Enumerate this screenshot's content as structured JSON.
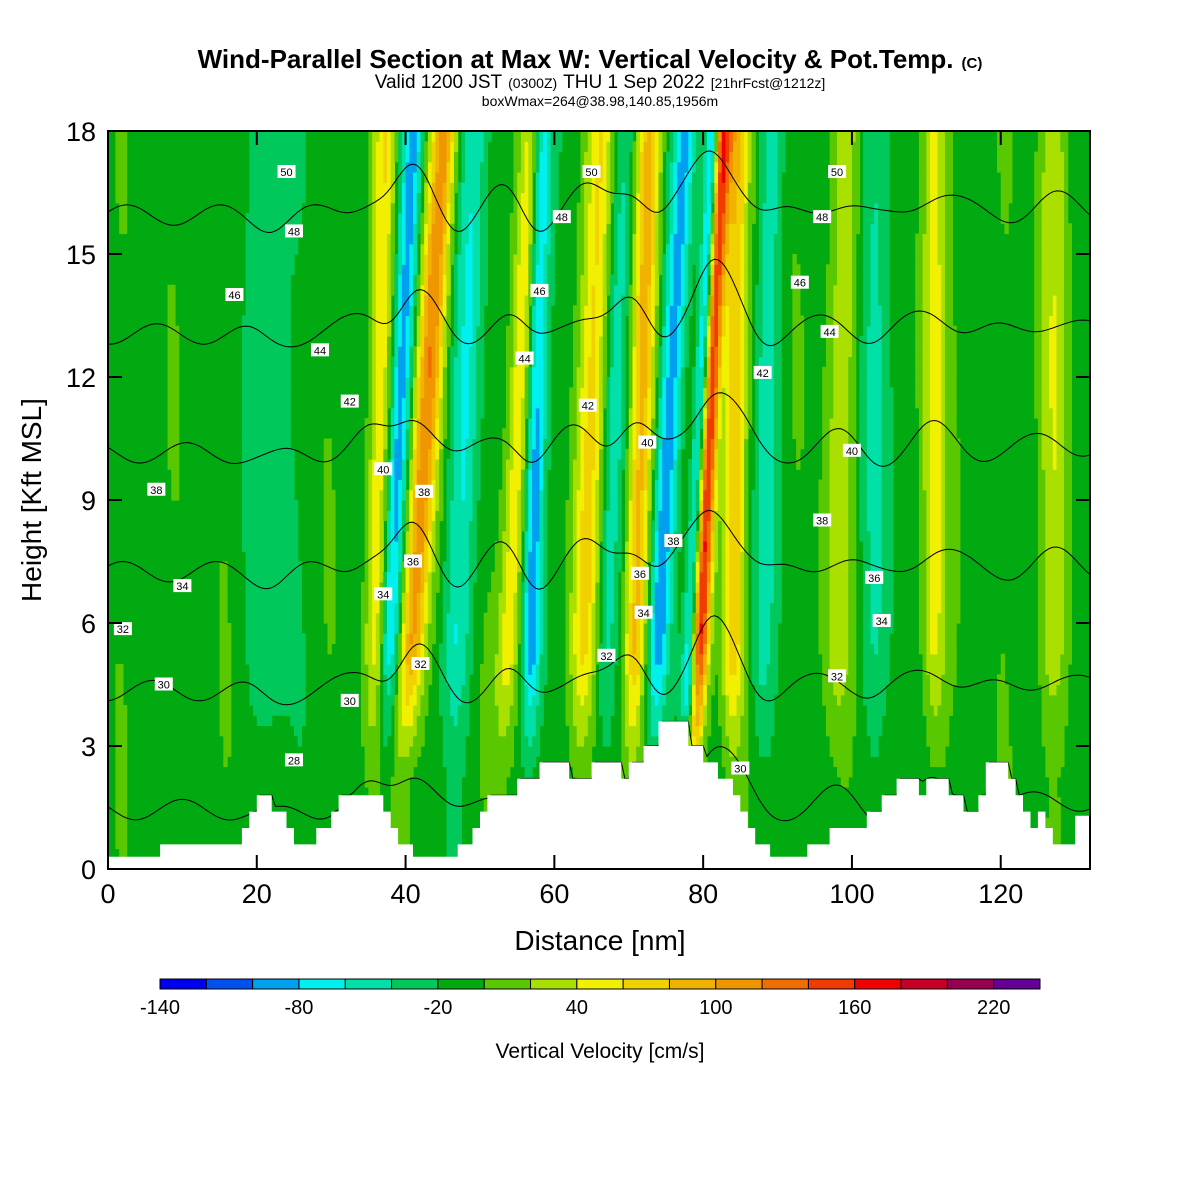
{
  "chart_data": {
    "type": "heatmap",
    "title": "Wind-Parallel Section at Max W: Vertical Velocity & Pot.Temp.",
    "title_mark": "(C)",
    "subtitle_main": "Valid 1200 JST",
    "subtitle_utc": "(0300Z)",
    "subtitle_date": "THU 1 Sep 2022",
    "subtitle_fcst": "[21hrFcst@1212z]",
    "box_info": "boxWmax=264@38.98,140.85,1956m",
    "xlabel": "Distance [nm]",
    "ylabel": "Height [Kft MSL]",
    "xlim": [
      0,
      132
    ],
    "ylim": [
      0,
      18
    ],
    "x_ticks": [
      "0",
      "20",
      "40",
      "60",
      "80",
      "100",
      "120"
    ],
    "y_ticks": [
      "0",
      "3",
      "6",
      "9",
      "12",
      "15",
      "18"
    ],
    "colorbar": {
      "label": "Vertical Velocity [cm/s]",
      "tick_labels": [
        "-140",
        "-80",
        "-20",
        "40",
        "100",
        "160",
        "220"
      ],
      "levels": [
        -140,
        -120,
        -100,
        -80,
        -60,
        -40,
        -20,
        0,
        20,
        40,
        60,
        80,
        100,
        120,
        140,
        160,
        180,
        200,
        220,
        240
      ],
      "colors": [
        "#0000f0",
        "#0050f0",
        "#00a0f0",
        "#00f0f0",
        "#00e0a8",
        "#00c85a",
        "#00aa10",
        "#5ac800",
        "#aae000",
        "#f0f000",
        "#f0d200",
        "#f0b400",
        "#f09600",
        "#f06e00",
        "#f03c00",
        "#f00000",
        "#c80028",
        "#960050",
        "#640096"
      ]
    },
    "terrain_nm_kft": [
      [
        0,
        0.3
      ],
      [
        7,
        0.3
      ],
      [
        7,
        0.6
      ],
      [
        18,
        0.6
      ],
      [
        18,
        1.0
      ],
      [
        19,
        1.0
      ],
      [
        19,
        1.4
      ],
      [
        20,
        1.4
      ],
      [
        20,
        1.8
      ],
      [
        22,
        1.8
      ],
      [
        22,
        1.4
      ],
      [
        24,
        1.4
      ],
      [
        24,
        1.0
      ],
      [
        25,
        1.0
      ],
      [
        25,
        0.6
      ],
      [
        28,
        0.6
      ],
      [
        28,
        1.0
      ],
      [
        30,
        1.0
      ],
      [
        30,
        1.4
      ],
      [
        31,
        1.4
      ],
      [
        31,
        1.8
      ],
      [
        37,
        1.8
      ],
      [
        37,
        1.4
      ],
      [
        38,
        1.4
      ],
      [
        38,
        1.0
      ],
      [
        39,
        1.0
      ],
      [
        39,
        0.6
      ],
      [
        41,
        0.6
      ],
      [
        41,
        0.3
      ],
      [
        47,
        0.3
      ],
      [
        47,
        0.6
      ],
      [
        49,
        0.6
      ],
      [
        49,
        1.0
      ],
      [
        50,
        1.0
      ],
      [
        50,
        1.4
      ],
      [
        51,
        1.4
      ],
      [
        51,
        1.8
      ],
      [
        55,
        1.8
      ],
      [
        55,
        2.2
      ],
      [
        58,
        2.2
      ],
      [
        58,
        2.6
      ],
      [
        62,
        2.6
      ],
      [
        62,
        2.2
      ],
      [
        65,
        2.2
      ],
      [
        65,
        2.6
      ],
      [
        69,
        2.6
      ],
      [
        69,
        2.2
      ],
      [
        70,
        2.2
      ],
      [
        70,
        2.6
      ],
      [
        72,
        2.6
      ],
      [
        72,
        3.0
      ],
      [
        74,
        3.0
      ],
      [
        74,
        3.6
      ],
      [
        78,
        3.6
      ],
      [
        78,
        3.0
      ],
      [
        80,
        3.0
      ],
      [
        80,
        2.6
      ],
      [
        82,
        2.6
      ],
      [
        82,
        2.2
      ],
      [
        84,
        2.2
      ],
      [
        84,
        1.8
      ],
      [
        85,
        1.8
      ],
      [
        85,
        1.4
      ],
      [
        86,
        1.4
      ],
      [
        86,
        1.0
      ],
      [
        87,
        1.0
      ],
      [
        87,
        0.6
      ],
      [
        89,
        0.6
      ],
      [
        89,
        0.3
      ],
      [
        94,
        0.3
      ],
      [
        94,
        0.6
      ],
      [
        97,
        0.6
      ],
      [
        97,
        1.0
      ],
      [
        102,
        1.0
      ],
      [
        102,
        1.4
      ],
      [
        104,
        1.4
      ],
      [
        104,
        1.8
      ],
      [
        106,
        1.8
      ],
      [
        106,
        2.2
      ],
      [
        109,
        2.2
      ],
      [
        109,
        1.8
      ],
      [
        110,
        1.8
      ],
      [
        110,
        2.2
      ],
      [
        113,
        2.2
      ],
      [
        113,
        1.8
      ],
      [
        115,
        1.8
      ],
      [
        115,
        1.4
      ],
      [
        117,
        1.4
      ],
      [
        117,
        1.8
      ],
      [
        118,
        1.8
      ],
      [
        118,
        2.6
      ],
      [
        121,
        2.6
      ],
      [
        121,
        2.2
      ],
      [
        122,
        2.2
      ],
      [
        122,
        1.8
      ],
      [
        123,
        1.8
      ],
      [
        123,
        1.4
      ],
      [
        124,
        1.4
      ],
      [
        124,
        1.0
      ],
      [
        125,
        1.0
      ],
      [
        125,
        1.4
      ],
      [
        126,
        1.4
      ],
      [
        126,
        1.0
      ],
      [
        127,
        1.0
      ],
      [
        127,
        0.6
      ],
      [
        130,
        0.6
      ],
      [
        130,
        1.3
      ],
      [
        132,
        1.3
      ]
    ],
    "updrafts": [
      {
        "x": 41,
        "w": 1.8,
        "peak_cm_s": 120,
        "slope": 0.35
      },
      {
        "x": 36,
        "w": 1.4,
        "peak_cm_s": 60,
        "slope": 0.1
      },
      {
        "x": 54,
        "w": 1.6,
        "peak_cm_s": 70,
        "slope": 0.25
      },
      {
        "x": 64,
        "w": 2.0,
        "peak_cm_s": 70,
        "slope": 0.2
      },
      {
        "x": 71,
        "w": 1.6,
        "peak_cm_s": 90,
        "slope": 0.15
      },
      {
        "x": 79.5,
        "w": 1.3,
        "peak_cm_s": 200,
        "slope": 0.25
      },
      {
        "x": 84,
        "w": 1.5,
        "peak_cm_s": 80,
        "slope": 0.05
      },
      {
        "x": 98,
        "w": 2.2,
        "peak_cm_s": 40,
        "slope": 0.1
      },
      {
        "x": 111,
        "w": 1.6,
        "peak_cm_s": 60,
        "slope": 0.0
      },
      {
        "x": 127,
        "w": 2.0,
        "peak_cm_s": 40,
        "slope": 0.0
      }
    ],
    "downdrafts": [
      {
        "x": 78.5,
        "w": 1.0,
        "min_cm_s": -140,
        "slope": 0.25
      },
      {
        "x": 38,
        "w": 1.4,
        "min_cm_s": -80,
        "slope": 0.25
      },
      {
        "x": 57,
        "w": 1.4,
        "min_cm_s": -90,
        "slope": 0.1
      },
      {
        "x": 74,
        "w": 1.6,
        "min_cm_s": -80,
        "slope": 0.3
      },
      {
        "x": 47,
        "w": 2.0,
        "min_cm_s": -50,
        "slope": 0.2
      },
      {
        "x": 67,
        "w": 1.6,
        "min_cm_s": -40,
        "slope": 0.2
      },
      {
        "x": 88,
        "w": 1.6,
        "min_cm_s": -40,
        "slope": 0.1
      },
      {
        "x": 103,
        "w": 2.5,
        "min_cm_s": -30,
        "slope": 0.0
      },
      {
        "x": 22,
        "w": 3.0,
        "min_cm_s": -30,
        "slope": 0.0
      }
    ],
    "theta_levels": [
      28,
      30,
      32,
      34,
      36,
      38,
      40,
      42,
      44,
      46,
      48,
      50
    ],
    "theta_labels": [
      {
        "text": "50",
        "x": 24,
        "y": 17.0
      },
      {
        "text": "48",
        "x": 25,
        "y": 15.55
      },
      {
        "text": "46",
        "x": 17,
        "y": 14.0
      },
      {
        "text": "44",
        "x": 28.5,
        "y": 12.65
      },
      {
        "text": "42",
        "x": 32.5,
        "y": 11.4
      },
      {
        "text": "40",
        "x": 37,
        "y": 9.75
      },
      {
        "text": "38",
        "x": 42.5,
        "y": 9.2
      },
      {
        "text": "36",
        "x": 41,
        "y": 7.5
      },
      {
        "text": "34",
        "x": 37,
        "y": 6.7
      },
      {
        "text": "32",
        "x": 42,
        "y": 5.0
      },
      {
        "text": "30",
        "x": 32.5,
        "y": 4.1
      },
      {
        "text": "28",
        "x": 25,
        "y": 2.65
      },
      {
        "text": "38",
        "x": 6.5,
        "y": 9.25
      },
      {
        "text": "34",
        "x": 10,
        "y": 6.9
      },
      {
        "text": "32",
        "x": 2,
        "y": 5.85
      },
      {
        "text": "30",
        "x": 7.5,
        "y": 4.5
      },
      {
        "text": "50",
        "x": 65,
        "y": 17.0
      },
      {
        "text": "48",
        "x": 61,
        "y": 15.9
      },
      {
        "text": "46",
        "x": 58,
        "y": 14.1
      },
      {
        "text": "44",
        "x": 56,
        "y": 12.45
      },
      {
        "text": "42",
        "x": 64.5,
        "y": 11.3
      },
      {
        "text": "40",
        "x": 72.5,
        "y": 10.4
      },
      {
        "text": "38",
        "x": 76,
        "y": 8.0
      },
      {
        "text": "36",
        "x": 71.5,
        "y": 7.2
      },
      {
        "text": "34",
        "x": 72,
        "y": 6.25
      },
      {
        "text": "32",
        "x": 67,
        "y": 5.2
      },
      {
        "text": "30",
        "x": 85,
        "y": 2.45
      },
      {
        "text": "50",
        "x": 98,
        "y": 17.0
      },
      {
        "text": "48",
        "x": 96,
        "y": 15.9
      },
      {
        "text": "46",
        "x": 93,
        "y": 14.3
      },
      {
        "text": "44",
        "x": 97,
        "y": 13.1
      },
      {
        "text": "42",
        "x": 88,
        "y": 12.1
      },
      {
        "text": "40",
        "x": 100,
        "y": 10.2
      },
      {
        "text": "38",
        "x": 96,
        "y": 8.5
      },
      {
        "text": "36",
        "x": 103,
        "y": 7.1
      },
      {
        "text": "34",
        "x": 104,
        "y": 6.05
      },
      {
        "text": "32",
        "x": 98,
        "y": 4.7
      }
    ]
  }
}
